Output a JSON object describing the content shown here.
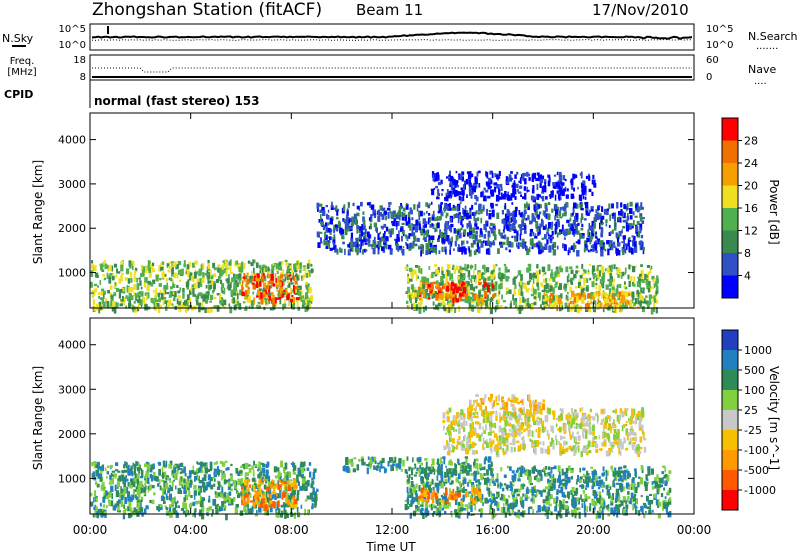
{
  "header": {
    "station": "Zhongshan Station (fitACF)",
    "beam": "Beam 11",
    "date": "17/Nov/2010"
  },
  "strip_sky": {
    "left_label": "N.Sky",
    "left_ticks": [
      "10^5",
      "10^0"
    ],
    "right_ticks": [
      "10^5",
      "10^0"
    ],
    "right_label": "N.Search",
    "right_legend": "......."
  },
  "strip_freq": {
    "left_label_1": "Freq.",
    "left_label_2": "[MHz]",
    "left_ticks": [
      "18",
      "8"
    ],
    "right_ticks": [
      "60",
      "0"
    ],
    "right_label": "Nave",
    "right_legend": "...."
  },
  "cpid": {
    "label": "CPID",
    "text": "normal (fast stereo) 153"
  },
  "xaxis": {
    "title": "Time UT",
    "ticks": [
      "00:00",
      "04:00",
      "08:00",
      "12:00",
      "16:00",
      "20:00",
      "00:00"
    ]
  },
  "colors": {
    "power": [
      "#0000ff",
      "#3050c8",
      "#3a8a50",
      "#50b050",
      "#f0e020",
      "#f5a000",
      "#f07000",
      "#ff0000"
    ],
    "velocity": [
      "#ff0000",
      "#ff5a00",
      "#ff9a00",
      "#f5c000",
      "#c8c8c8",
      "#80d040",
      "#2e8b57",
      "#2080c0",
      "#2040c0"
    ]
  },
  "chart_data": [
    {
      "type": "heatmap",
      "name": "power",
      "ylabel": "Slant Range [km]",
      "xlabel": "",
      "xlim": [
        0,
        24
      ],
      "ylim": [
        200,
        4600
      ],
      "yticks": [
        "1000",
        "2000",
        "3000",
        "4000"
      ],
      "colorbar": {
        "label": "Power [dB]",
        "ticks": [
          "28",
          "24",
          "20",
          "16",
          "12",
          "8",
          "4"
        ]
      },
      "regions": [
        {
          "x": [
            0.0,
            8.8
          ],
          "y": [
            200,
            1300
          ],
          "level": 3
        },
        {
          "x": [
            6.0,
            8.2
          ],
          "y": [
            400,
            1000
          ],
          "level": 6
        },
        {
          "x": [
            12.5,
            22.5
          ],
          "y": [
            200,
            1200
          ],
          "level": 3
        },
        {
          "x": [
            13.0,
            16.0
          ],
          "y": [
            400,
            800
          ],
          "level": 6
        },
        {
          "x": [
            18.0,
            21.5
          ],
          "y": [
            250,
            600
          ],
          "level": 5
        },
        {
          "x": [
            9.0,
            22.0
          ],
          "y": [
            1500,
            2600
          ],
          "level": 1
        },
        {
          "x": [
            13.5,
            20.0
          ],
          "y": [
            2700,
            3300
          ],
          "level": 0
        }
      ]
    },
    {
      "type": "heatmap",
      "name": "velocity",
      "ylabel": "Slant Range [km]",
      "xlabel": "Time UT",
      "xlim": [
        0,
        24
      ],
      "ylim": [
        200,
        4600
      ],
      "yticks": [
        "1000",
        "2000",
        "3000",
        "4000"
      ],
      "colorbar": {
        "label": "Velocity [m s^-1]",
        "ticks": [
          "1000",
          "500",
          "100",
          "25",
          "-25",
          "-100",
          "-500",
          "-1000"
        ]
      },
      "regions": [
        {
          "x": [
            0.0,
            9.0
          ],
          "y": [
            200,
            1400
          ],
          "level": 6
        },
        {
          "x": [
            6.0,
            8.2
          ],
          "y": [
            400,
            1000
          ],
          "level": 2
        },
        {
          "x": [
            12.5,
            23.0
          ],
          "y": [
            200,
            1300
          ],
          "level": 6
        },
        {
          "x": [
            13.0,
            15.5
          ],
          "y": [
            500,
            800
          ],
          "level": 2
        },
        {
          "x": [
            14.0,
            22.0
          ],
          "y": [
            1600,
            2600
          ],
          "level": 4
        },
        {
          "x": [
            10.0,
            16.0
          ],
          "y": [
            1200,
            1500
          ],
          "level": 6
        },
        {
          "x": [
            15.0,
            18.0
          ],
          "y": [
            2500,
            2900
          ],
          "level": 3
        }
      ]
    }
  ]
}
